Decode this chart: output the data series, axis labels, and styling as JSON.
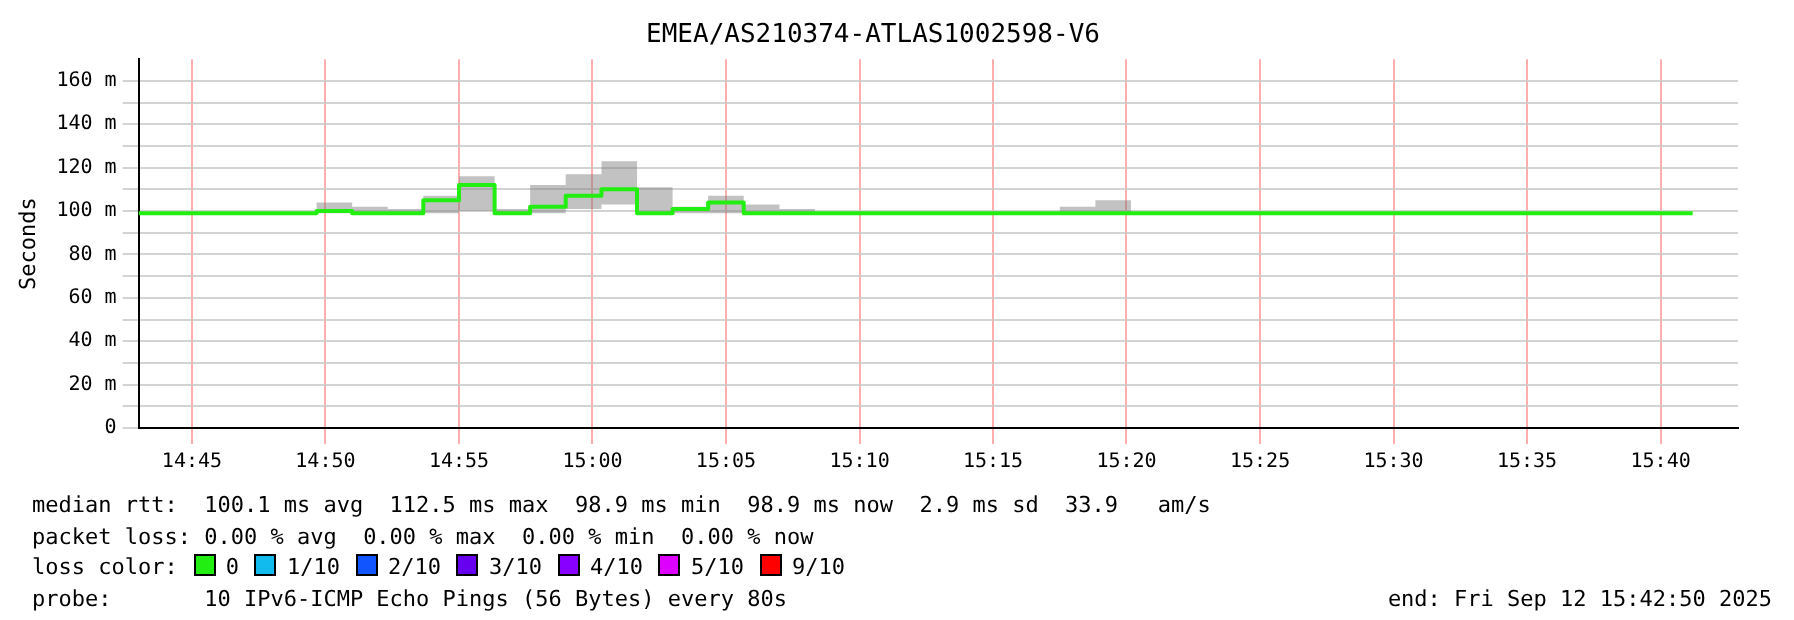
{
  "chart_data": {
    "type": "step",
    "title": "EMEA/AS210374-ATLAS1002598-V6",
    "ylabel": "Seconds",
    "x": [
      14.7167,
      14.8278,
      14.85,
      14.8722,
      14.8944,
      14.9167,
      14.9389,
      14.9611,
      14.9833,
      15.0056,
      15.0278,
      15.05,
      15.0722,
      15.0944,
      15.1167,
      15.1389,
      15.2917,
      15.3139,
      15.3361,
      15.6867
    ],
    "series": [
      {
        "color": "#22ee11",
        "values": [
          99,
          100,
          99,
          99,
          105,
          112,
          99,
          102,
          107,
          110,
          99,
          101,
          104,
          99,
          99,
          99,
          99,
          99,
          99,
          99
        ],
        "lower": [
          99,
          99,
          99,
          99,
          99,
          100,
          99,
          99,
          101,
          103,
          99,
          99,
          99,
          99,
          99,
          99,
          99,
          99,
          99,
          99
        ],
        "upper": [
          99,
          104,
          102,
          101,
          107,
          116,
          101,
          112,
          117,
          123,
          111,
          102,
          107,
          103,
          101,
          99,
          102,
          105,
          99,
          99
        ]
      }
    ],
    "xlim": [
      14.7167,
      15.715
    ],
    "xticks": [
      {
        "value": 14.75,
        "label": "14:45"
      },
      {
        "value": 14.8333,
        "label": "14:50"
      },
      {
        "value": 14.9167,
        "label": "14:55"
      },
      {
        "value": 15,
        "label": "15:00"
      },
      {
        "value": 15.0833,
        "label": "15:05"
      },
      {
        "value": 15.1667,
        "label": "15:10"
      },
      {
        "value": 15.25,
        "label": "15:15"
      },
      {
        "value": 15.3333,
        "label": "15:20"
      },
      {
        "value": 15.4167,
        "label": "15:25"
      },
      {
        "value": 15.5,
        "label": "15:30"
      },
      {
        "value": 15.5833,
        "label": "15:35"
      },
      {
        "value": 15.6667,
        "label": "15:40"
      }
    ],
    "ylim": [
      0,
      170
    ],
    "yticks": [
      0,
      {
        "value": 10,
        "label": null
      },
      {
        "value": 20,
        "label": "20 m"
      },
      {
        "value": 30,
        "label": null
      },
      {
        "value": 40,
        "label": "40 m"
      },
      {
        "value": 50,
        "label": null
      },
      {
        "value": 60,
        "label": "60 m"
      },
      {
        "value": 70,
        "label": null
      },
      {
        "value": 80,
        "label": "80 m"
      },
      {
        "value": 90,
        "label": null
      },
      {
        "value": 100,
        "label": "100 m"
      },
      {
        "value": 110,
        "label": null
      },
      {
        "value": 120,
        "label": "120 m"
      },
      {
        "value": 130,
        "label": null
      },
      {
        "value": 140,
        "label": "140 m"
      },
      {
        "value": 150,
        "label": null
      },
      {
        "value": 160,
        "label": "160 m"
      }
    ],
    "grid": true,
    "annotations": [
      "median rtt:  100.1 ms avg  112.5 ms max  98.9 ms min  98.9 ms now  2.9 ms sd  33.9   am/s",
      "packet loss: 0.00 % avg  0.00 % max  0.00 % min  0.00 % now",
      "loss color:",
      "0",
      "1/10",
      "2/10",
      "3/10",
      "4/10",
      "5/10",
      "9/10",
      "probe:       10 IPv6-ICMP Echo Pings (56 Bytes) every 80s",
      "end: Fri Sep 12 15:42:50 2025"
    ]
  }
}
